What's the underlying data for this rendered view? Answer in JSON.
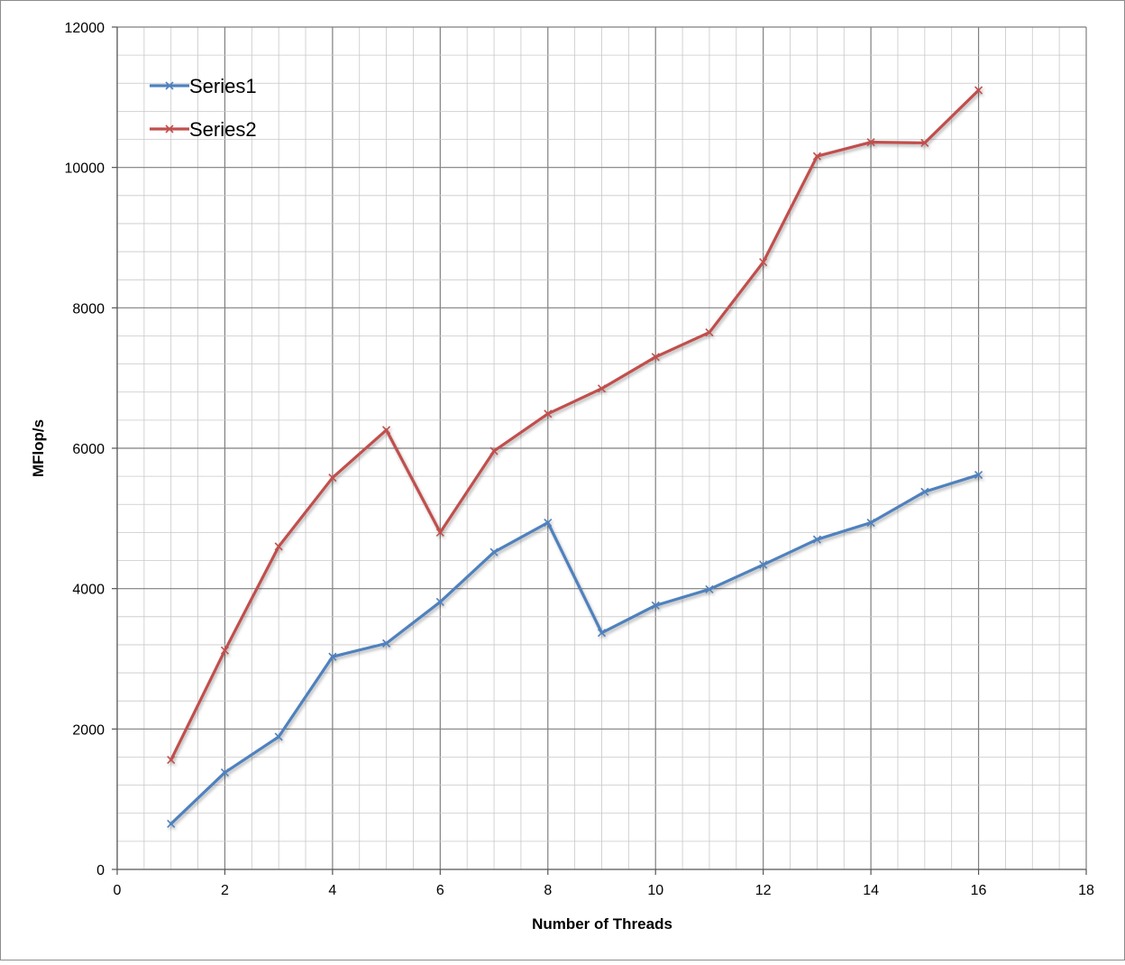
{
  "chart_data": {
    "type": "line",
    "title": "",
    "xlabel": "Number of Threads",
    "ylabel": "MFlop/s",
    "xlim": [
      0,
      18
    ],
    "ylim": [
      0,
      12000
    ],
    "x_ticks": [
      0,
      2,
      4,
      6,
      8,
      10,
      12,
      14,
      16,
      18
    ],
    "y_ticks": [
      0,
      2000,
      4000,
      6000,
      8000,
      10000,
      12000
    ],
    "x_tick_labels": [
      "0",
      "2",
      "4",
      "6",
      "8",
      "10",
      "12",
      "14",
      "16",
      "18"
    ],
    "y_tick_labels": [
      "0",
      "2000",
      "4000",
      "6000",
      "8000",
      "10000",
      "12000"
    ],
    "grid": true,
    "legend_position": "top-left",
    "x": [
      1,
      2,
      3,
      4,
      5,
      6,
      7,
      8,
      9,
      10,
      11,
      12,
      13,
      14,
      15,
      16
    ],
    "series": [
      {
        "name": "Series1",
        "color": "#4f81bd",
        "marker": "x",
        "values": [
          650,
          1380,
          1890,
          3030,
          3220,
          3810,
          4520,
          4940,
          3370,
          3760,
          3990,
          4340,
          4700,
          4940,
          5380,
          5620
        ]
      },
      {
        "name": "Series2",
        "color": "#c0504d",
        "marker": "x",
        "values": [
          1560,
          3120,
          4600,
          5580,
          6260,
          4800,
          5960,
          6490,
          6850,
          7300,
          7650,
          8650,
          10160,
          10360,
          10350,
          11100
        ]
      }
    ]
  }
}
